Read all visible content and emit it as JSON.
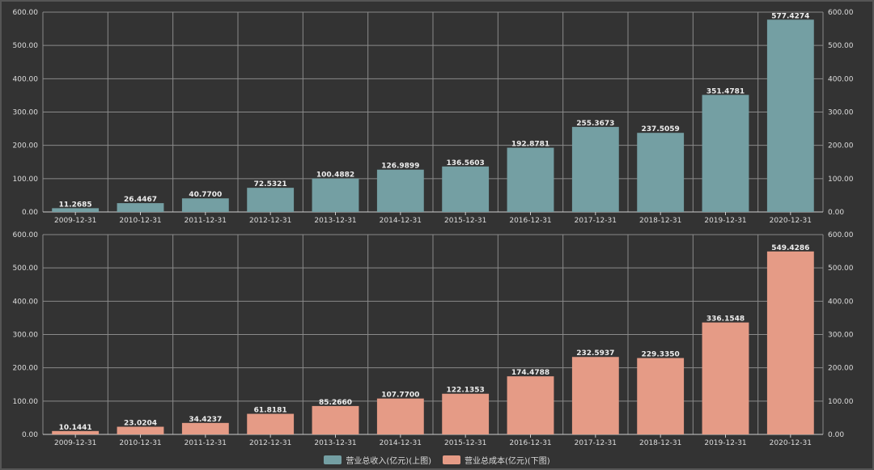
{
  "chart_data": [
    {
      "type": "bar",
      "categories": [
        "2009-12-31",
        "2010-12-31",
        "2011-12-31",
        "2012-12-31",
        "2013-12-31",
        "2014-12-31",
        "2015-12-31",
        "2016-12-31",
        "2017-12-31",
        "2018-12-31",
        "2019-12-31",
        "2020-12-31"
      ],
      "series": [
        {
          "name": "营业总收入(亿元)(上图)",
          "values": [
            11.2685,
            26.4467,
            40.77,
            72.5321,
            100.4882,
            126.9899,
            136.5603,
            192.8781,
            255.3673,
            237.5059,
            351.4781,
            577.4274
          ],
          "color": "#749fa3"
        }
      ],
      "ylim": [
        0,
        600
      ],
      "yticks": [
        "0.00",
        "100.00",
        "200.00",
        "300.00",
        "400.00",
        "500.00",
        "600.00"
      ],
      "grid": true,
      "axes": "left-and-right"
    },
    {
      "type": "bar",
      "categories": [
        "2009-12-31",
        "2010-12-31",
        "2011-12-31",
        "2012-12-31",
        "2013-12-31",
        "2014-12-31",
        "2015-12-31",
        "2016-12-31",
        "2017-12-31",
        "2018-12-31",
        "2019-12-31",
        "2020-12-31"
      ],
      "series": [
        {
          "name": "营业总成本(亿元)(下图)",
          "values": [
            10.1441,
            23.0204,
            34.4237,
            61.8181,
            85.266,
            107.77,
            122.1353,
            174.4788,
            232.5937,
            229.335,
            336.1548,
            549.4286
          ],
          "color": "#e59b86"
        }
      ],
      "ylim": [
        0,
        600
      ],
      "yticks": [
        "0.00",
        "100.00",
        "200.00",
        "300.00",
        "400.00",
        "500.00",
        "600.00"
      ],
      "grid": true,
      "axes": "left-and-right"
    }
  ],
  "legend": {
    "position": "bottom",
    "items": [
      {
        "label": "营业总收入(亿元)(上图)",
        "color": "#749fa3"
      },
      {
        "label": "营业总成本(亿元)(下图)",
        "color": "#e59b86"
      }
    ]
  }
}
